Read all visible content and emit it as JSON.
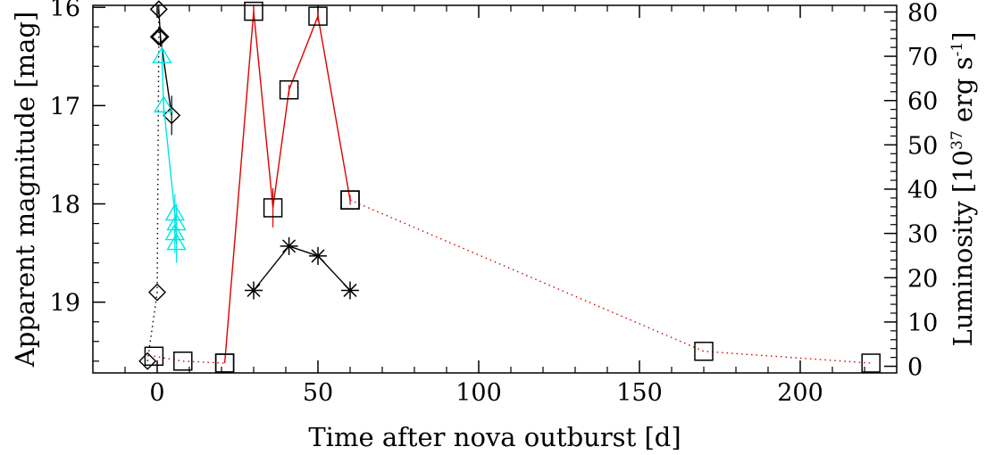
{
  "chart_data": {
    "type": "scatter",
    "title": "",
    "xlabel": "Time after nova outburst [d]",
    "ylabel_left": "Apparent magnitude [mag]",
    "ylabel_right_main": "Luminosity [10",
    "ylabel_right_exp1": "37",
    "ylabel_right_unit": " erg s",
    "ylabel_right_exp2": "-1",
    "ylabel_right_close": "]",
    "xlim": [
      -20,
      230
    ],
    "ylim_left": [
      19.72,
      15.98
    ],
    "ylim_right": [
      -1.5,
      81.5
    ],
    "left_axis_inverted": true,
    "x_ticks": [
      0,
      50,
      100,
      150,
      200
    ],
    "y_left_ticks": [
      16,
      17,
      18,
      19
    ],
    "y_right_ticks": [
      0,
      10,
      20,
      30,
      40,
      50,
      60,
      70,
      80
    ],
    "grid": false,
    "series": [
      {
        "axis": "left",
        "marker": "diamond",
        "color": "#000000",
        "line": "dotted",
        "points": [
          {
            "x": -3,
            "y": 19.6
          },
          {
            "x": 0,
            "y": 18.9
          },
          {
            "x": 0.5,
            "y": 16.3
          },
          {
            "x": 0.5,
            "y": 16.02
          }
        ]
      },
      {
        "axis": "left",
        "marker": "diamond",
        "color": "#000000",
        "line": "solid",
        "points": [
          {
            "x": 0.5,
            "y": 16.02,
            "err": 0.05
          },
          {
            "x": 1,
            "y": 16.3,
            "err": 0.1
          },
          {
            "x": 4.5,
            "y": 17.1,
            "err": 0.2
          }
        ]
      },
      {
        "axis": "left",
        "marker": "triangle",
        "color": "#00e5e5",
        "line": "solid",
        "points": [
          {
            "x": 1.5,
            "y": 16.5,
            "err": 0.1
          },
          {
            "x": 2,
            "y": 17.0,
            "err": 0.1
          },
          {
            "x": 5.5,
            "y": 18.1,
            "err": 0.2
          },
          {
            "x": 6,
            "y": 18.2,
            "err": 0.2
          },
          {
            "x": 5.5,
            "y": 18.3,
            "err": 0.2
          },
          {
            "x": 6,
            "y": 18.4,
            "err": 0.2
          }
        ]
      },
      {
        "axis": "left",
        "marker": "square",
        "color": "#000000",
        "line": "dotted",
        "line_color": "#e00000",
        "points": [
          {
            "x": -1,
            "y": 19.55
          },
          {
            "x": 8,
            "y": 19.6
          },
          {
            "x": 21,
            "y": 19.62
          }
        ]
      },
      {
        "axis": "left",
        "marker": "square",
        "color": "#000000",
        "line": "solid",
        "line_color": "#e00000",
        "points": [
          {
            "x": 21,
            "y": 19.62
          },
          {
            "x": 30,
            "y": 16.04,
            "err": 0.05
          },
          {
            "x": 36,
            "y": 18.04,
            "err": 0.2
          },
          {
            "x": 41,
            "y": 16.84,
            "err": 0.05
          },
          {
            "x": 50,
            "y": 16.09,
            "err": 0.05
          },
          {
            "x": 60,
            "y": 17.96,
            "err": 0.05
          }
        ]
      },
      {
        "axis": "left",
        "marker": "square",
        "color": "#000000",
        "line": "dotted",
        "line_color": "#e00000",
        "points": [
          {
            "x": 60,
            "y": 17.96
          },
          {
            "x": 170,
            "y": 19.5
          },
          {
            "x": 222,
            "y": 19.62
          }
        ]
      },
      {
        "axis": "left",
        "marker": "asterisk",
        "color": "#000000",
        "line": "solid",
        "points": [
          {
            "x": 30,
            "y": 18.88
          },
          {
            "x": 41,
            "y": 18.43
          },
          {
            "x": 50,
            "y": 18.53
          },
          {
            "x": 60,
            "y": 18.88
          }
        ]
      }
    ]
  }
}
